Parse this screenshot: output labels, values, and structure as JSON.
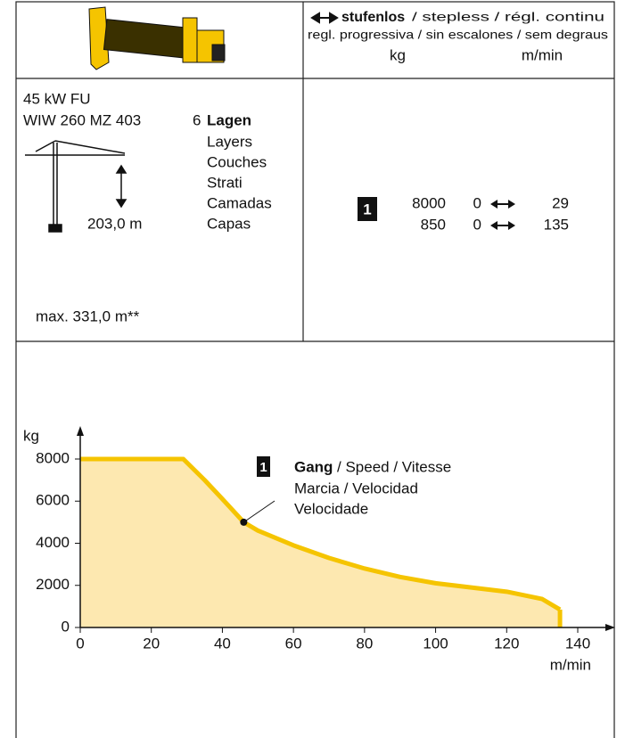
{
  "header": {
    "mode": "stufenlos",
    "mode_translations": "/ stepless / régl. continu",
    "mode_translations_2": "regl. progressiva / sin escalones / sem degraus",
    "unit_load": "kg",
    "unit_speed": "m/min"
  },
  "winch": {
    "power": "45 kW FU",
    "model": "WIW 260 MZ 403",
    "layers_count": "6",
    "layers_label": "Lagen",
    "layers_translations": [
      "Layers",
      "Couches",
      "Strati",
      "Camadas",
      "Capas"
    ],
    "rope_length": "203,0 m",
    "max_length": "max. 331,0 m**"
  },
  "speeds": {
    "gear": "1",
    "rows": [
      [
        "8000",
        "0",
        "29"
      ],
      [
        "850",
        "0",
        "135"
      ]
    ]
  },
  "chart_data": {
    "type": "area",
    "ylabel": "kg",
    "xlabel": "m/min",
    "color": "#f5c400",
    "fill": "#fde8b0",
    "x": [
      0,
      29,
      35,
      40,
      46,
      50,
      60,
      70,
      80,
      90,
      100,
      110,
      120,
      130,
      135
    ],
    "values": [
      8000,
      8000,
      7000,
      6100,
      5000,
      4600,
      3900,
      3300,
      2800,
      2400,
      2100,
      1900,
      1700,
      1350,
      850
    ],
    "xlim": [
      0,
      140
    ],
    "xticks": [
      0,
      20,
      40,
      60,
      80,
      100,
      120,
      140
    ],
    "ylim": [
      0,
      8000
    ],
    "yticks": [
      0,
      2000,
      4000,
      6000,
      8000
    ],
    "annotation": {
      "x": 46,
      "y": 5000,
      "gear": "1",
      "title": "Gang",
      "line1": "/ Speed / Vitesse",
      "line2": "Marcia / Velocidad",
      "line3": "Velocidade"
    }
  }
}
